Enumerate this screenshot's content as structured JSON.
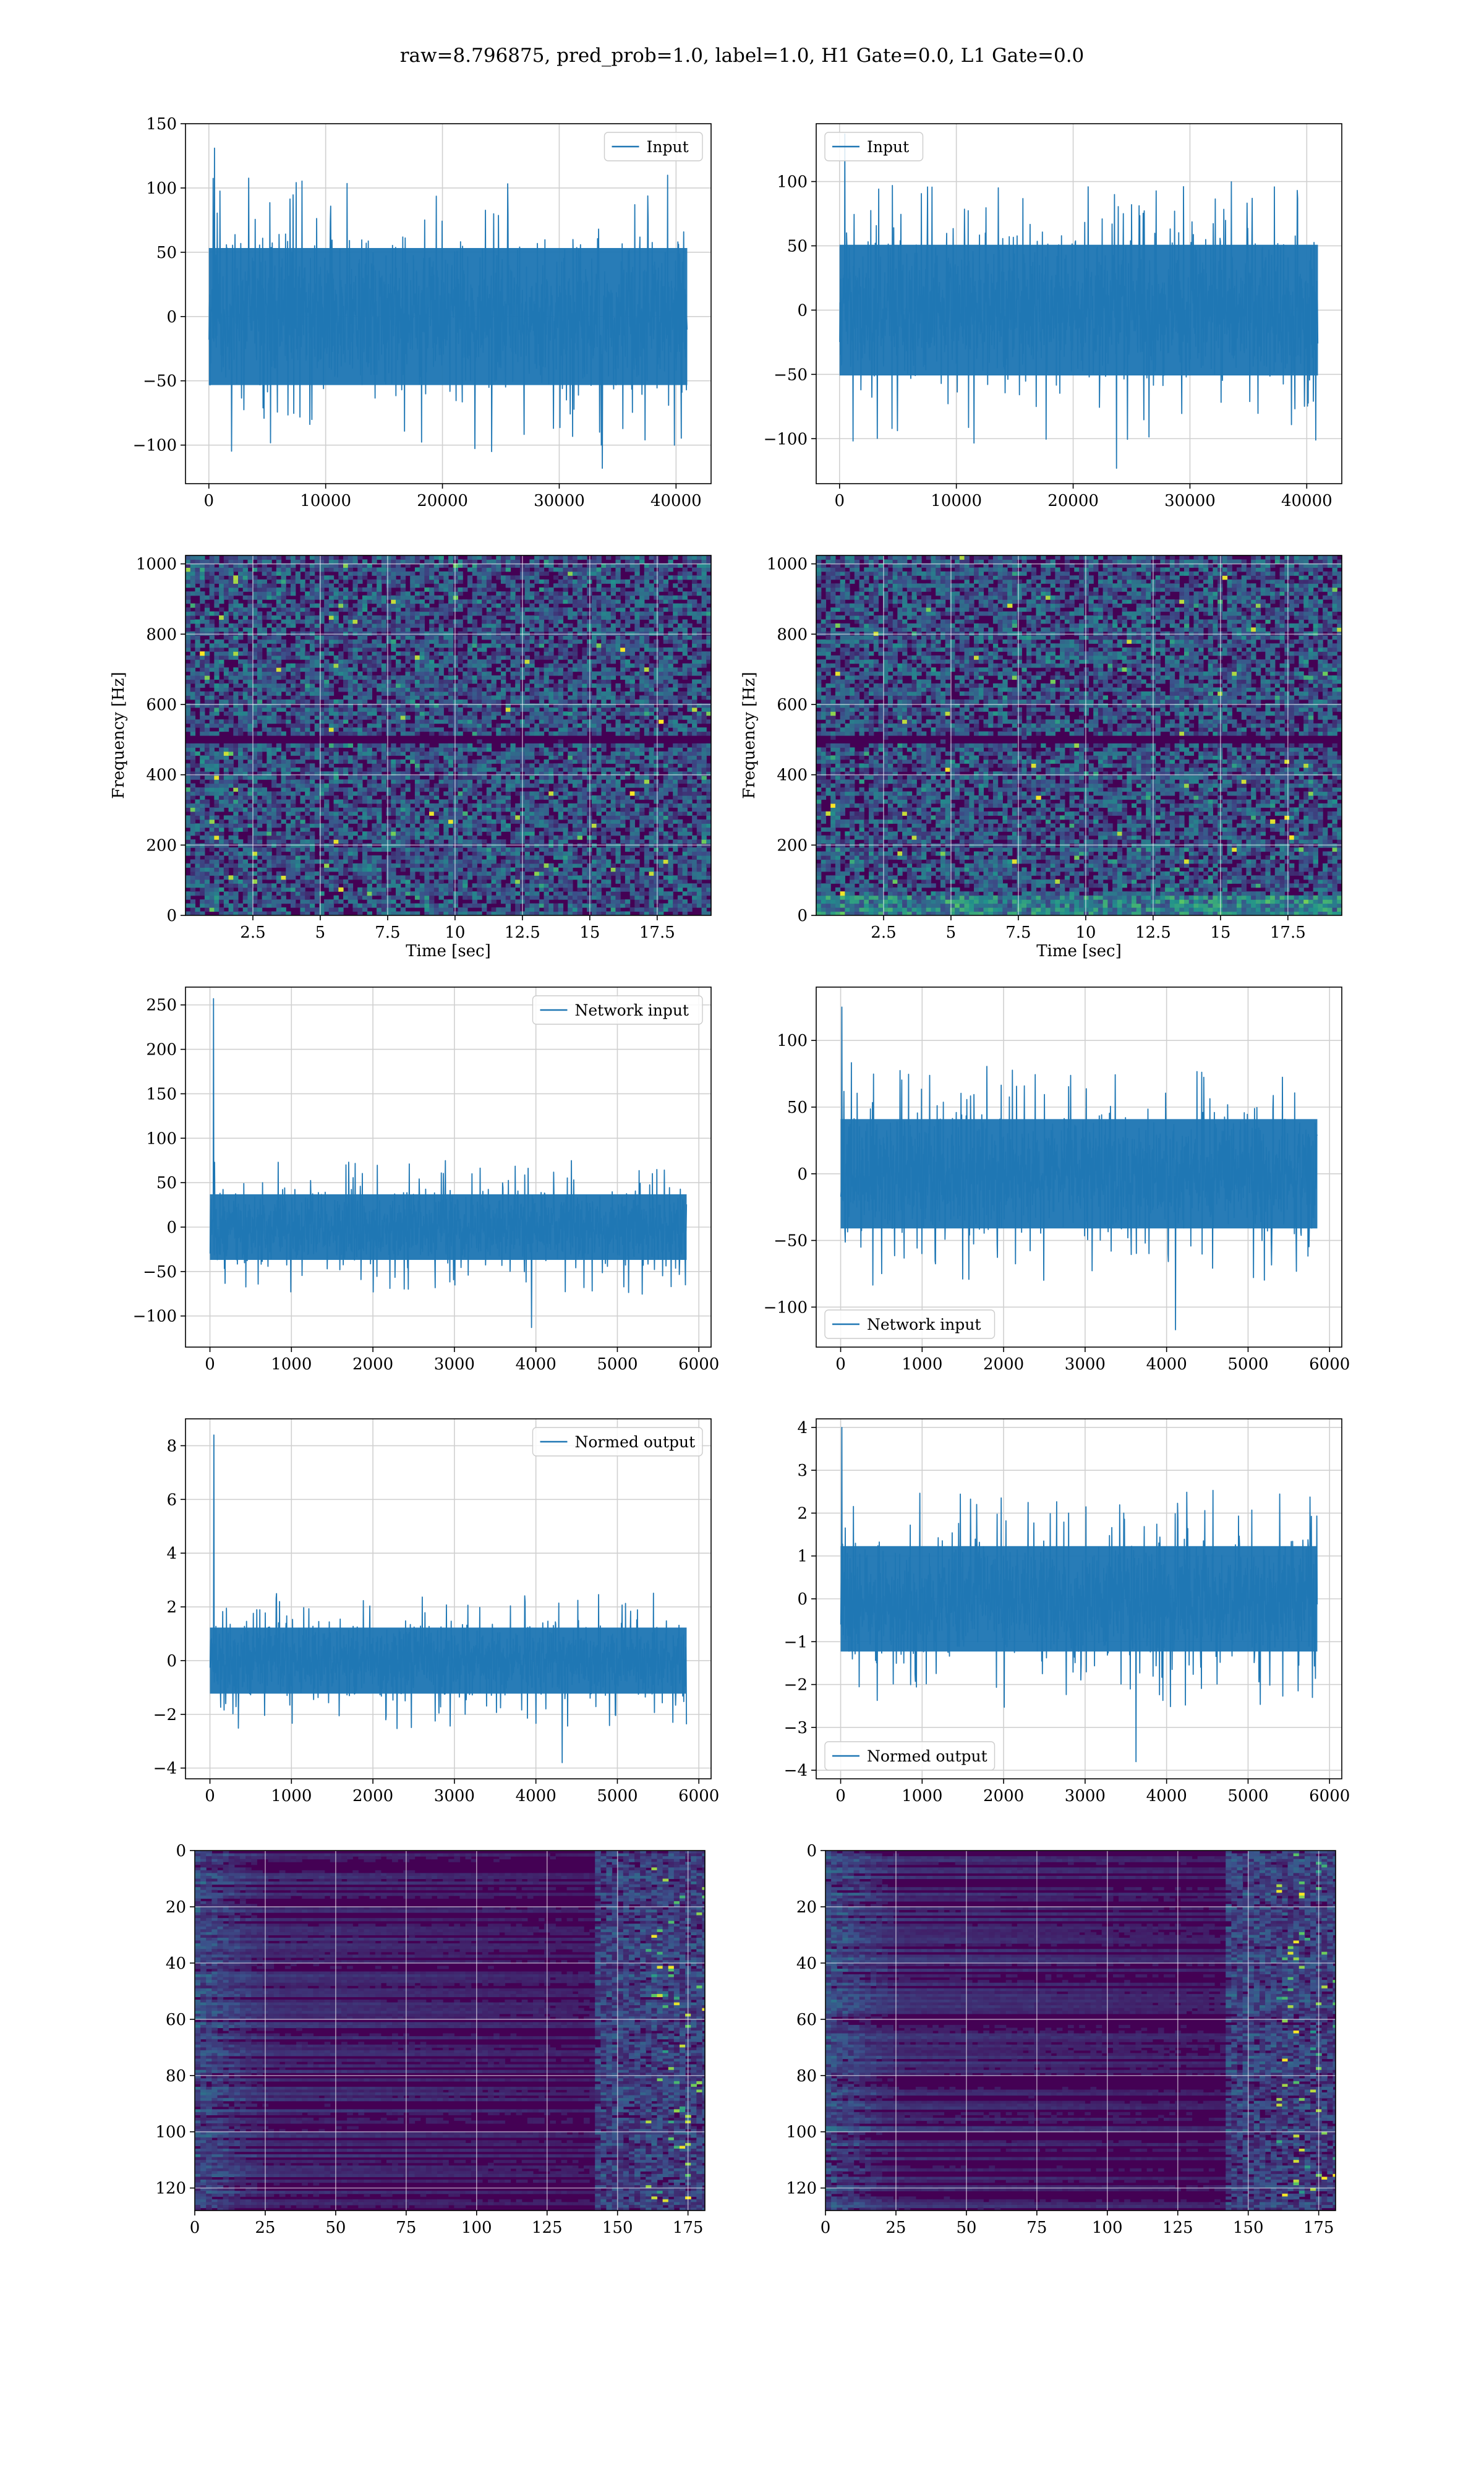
{
  "figure": {
    "title": "raw=8.796875, pred_prob=1.0, label=1.0, H1 Gate=0.0, L1 Gate=0.0"
  },
  "colors": {
    "line": "#1f77b4",
    "grid": "#d0d0d0",
    "viridis_dark": "#440154",
    "viridis_mid": "#21918c",
    "viridis_bright": "#fde725"
  },
  "chart_data": [
    {
      "id": "input-h1",
      "type": "line",
      "row": 0,
      "col": 0,
      "series": [
        {
          "name": "Input",
          "length": 40960,
          "amplitude_typical": 65,
          "min": -118,
          "max": 131
        }
      ],
      "xlim": [
        -2000,
        43000
      ],
      "ylim": [
        -130,
        150
      ],
      "xticks": [
        0,
        10000,
        20000,
        30000,
        40000
      ],
      "yticks": [
        -100,
        -50,
        0,
        50,
        100,
        150
      ],
      "legend": "top-right",
      "grid": true,
      "xlabel": "",
      "ylabel": ""
    },
    {
      "id": "input-l1",
      "type": "line",
      "row": 0,
      "col": 1,
      "series": [
        {
          "name": "Input",
          "length": 40960,
          "amplitude_typical": 62,
          "min": -123,
          "max": 137
        }
      ],
      "xlim": [
        -2000,
        43000
      ],
      "ylim": [
        -135,
        145
      ],
      "xticks": [
        0,
        10000,
        20000,
        30000,
        40000
      ],
      "yticks": [
        -100,
        -50,
        0,
        50,
        100
      ],
      "legend": "top-left",
      "grid": true,
      "xlabel": "",
      "ylabel": ""
    },
    {
      "id": "spectrogram-h1",
      "type": "heatmap",
      "row": 1,
      "col": 0,
      "xlim": [
        0,
        19.5
      ],
      "ylim": [
        0,
        1024
      ],
      "xticks": [
        2.5,
        5.0,
        7.5,
        10.0,
        12.5,
        15.0,
        17.5
      ],
      "yticks": [
        0,
        200,
        400,
        600,
        800,
        1000
      ],
      "xlabel": "Time [sec]",
      "ylabel": "Frequency [Hz]",
      "grid": true,
      "colormap": "viridis"
    },
    {
      "id": "spectrogram-l1",
      "type": "heatmap",
      "row": 1,
      "col": 1,
      "xlim": [
        0,
        19.5
      ],
      "ylim": [
        0,
        1024
      ],
      "xticks": [
        2.5,
        5.0,
        7.5,
        10.0,
        12.5,
        15.0,
        17.5
      ],
      "yticks": [
        0,
        200,
        400,
        600,
        800,
        1000
      ],
      "xlabel": "Time [sec]",
      "ylabel": "Frequency [Hz]",
      "grid": true,
      "colormap": "viridis"
    },
    {
      "id": "network-input-h1",
      "type": "line",
      "row": 2,
      "col": 0,
      "series": [
        {
          "name": "Network input",
          "length": 5850,
          "amplitude_typical": 45,
          "min": -113,
          "max": 257
        }
      ],
      "xlim": [
        -300,
        6150
      ],
      "ylim": [
        -135,
        270
      ],
      "xticks": [
        0,
        1000,
        2000,
        3000,
        4000,
        5000,
        6000
      ],
      "yticks": [
        -100,
        -50,
        0,
        50,
        100,
        150,
        200,
        250
      ],
      "legend": "top-right",
      "grid": true,
      "xlabel": "",
      "ylabel": ""
    },
    {
      "id": "network-input-l1",
      "type": "line",
      "row": 2,
      "col": 1,
      "series": [
        {
          "name": "Network input",
          "length": 5850,
          "amplitude_typical": 50,
          "min": -117,
          "max": 125
        }
      ],
      "xlim": [
        -300,
        6150
      ],
      "ylim": [
        -130,
        140
      ],
      "xticks": [
        0,
        1000,
        2000,
        3000,
        4000,
        5000,
        6000
      ],
      "yticks": [
        -100,
        -50,
        0,
        50,
        100
      ],
      "legend": "bottom-left",
      "grid": true,
      "xlabel": "",
      "ylabel": ""
    },
    {
      "id": "normed-output-h1",
      "type": "line",
      "row": 3,
      "col": 0,
      "series": [
        {
          "name": "Normed output",
          "length": 5850,
          "amplitude_typical": 1.5,
          "min": -3.8,
          "max": 8.4
        }
      ],
      "xlim": [
        -300,
        6150
      ],
      "ylim": [
        -4.4,
        9.0
      ],
      "xticks": [
        0,
        1000,
        2000,
        3000,
        4000,
        5000,
        6000
      ],
      "yticks": [
        -4,
        -2,
        0,
        2,
        4,
        6,
        8
      ],
      "legend": "top-right",
      "grid": true,
      "xlabel": "",
      "ylabel": ""
    },
    {
      "id": "normed-output-l1",
      "type": "line",
      "row": 3,
      "col": 1,
      "series": [
        {
          "name": "Normed output",
          "length": 5850,
          "amplitude_typical": 1.5,
          "min": -3.8,
          "max": 4.0
        }
      ],
      "xlim": [
        -300,
        6150
      ],
      "ylim": [
        -4.2,
        4.2
      ],
      "xticks": [
        0,
        1000,
        2000,
        3000,
        4000,
        5000,
        6000
      ],
      "yticks": [
        -4,
        -3,
        -2,
        -1,
        0,
        1,
        2,
        3,
        4
      ],
      "legend": "bottom-left",
      "grid": true,
      "xlabel": "",
      "ylabel": ""
    },
    {
      "id": "feature-map-h1",
      "type": "heatmap",
      "row": 4,
      "col": 0,
      "xlim": [
        0,
        181
      ],
      "ylim": [
        128,
        0
      ],
      "xticks": [
        0,
        25,
        50,
        75,
        100,
        125,
        150,
        175
      ],
      "yticks": [
        0,
        20,
        40,
        60,
        80,
        100,
        120
      ],
      "xlabel": "",
      "ylabel": "",
      "grid": true,
      "colormap": "viridis"
    },
    {
      "id": "feature-map-l1",
      "type": "heatmap",
      "row": 4,
      "col": 1,
      "xlim": [
        0,
        181
      ],
      "ylim": [
        128,
        0
      ],
      "xticks": [
        0,
        25,
        50,
        75,
        100,
        125,
        150,
        175
      ],
      "yticks": [
        0,
        20,
        40,
        60,
        80,
        100,
        120
      ],
      "xlabel": "",
      "ylabel": "",
      "grid": true,
      "colormap": "viridis"
    }
  ]
}
